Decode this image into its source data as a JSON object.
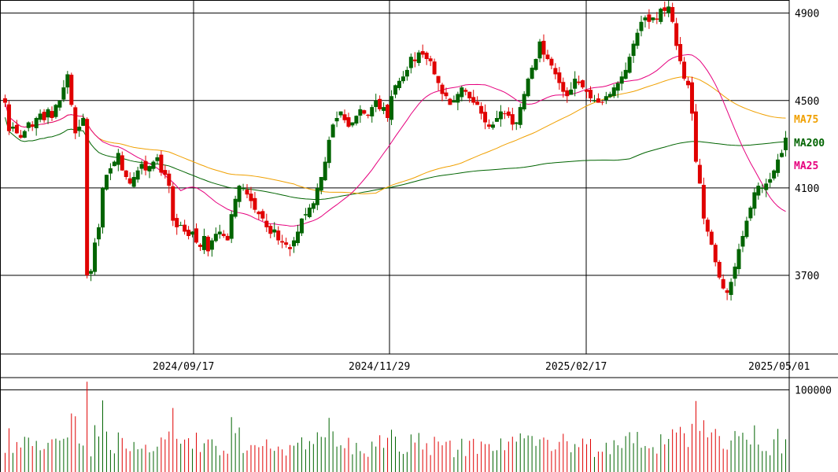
{
  "chart_data": {
    "type": "candlestick",
    "colors": {
      "up": "#006400",
      "down": "#e00000",
      "grid": "#000000",
      "ma25": "#e6007e",
      "ma75": "#f0a000",
      "ma200": "#006400"
    },
    "price_axis": {
      "ylim": [
        3340,
        4960
      ],
      "ticks": [
        "4900",
        "4500",
        "4100",
        "3700"
      ]
    },
    "date_labels": [
      "2024/09/17",
      "2024/11/29",
      "2025/02/17",
      "2025/05/01"
    ],
    "volume_axis": {
      "ylim": [
        0,
        115000
      ],
      "ticks": [
        "100000"
      ]
    },
    "legend": [
      {
        "name": "MA75",
        "color": "#f0a000"
      },
      {
        "name": "MA200",
        "color": "#006400"
      },
      {
        "name": "MA25",
        "color": "#e6007e"
      }
    ],
    "closes": [
      4490,
      4360,
      4380,
      4350,
      4330,
      4360,
      4400,
      4380,
      4420,
      4440,
      4410,
      4460,
      4420,
      4480,
      4500,
      4560,
      4620,
      4480,
      4350,
      4380,
      4420,
      3700,
      3720,
      3850,
      3920,
      4100,
      4160,
      4190,
      4220,
      4260,
      4180,
      4150,
      4120,
      4150,
      4180,
      4210,
      4180,
      4200,
      4220,
      4240,
      4170,
      4160,
      4110,
      3950,
      3920,
      3930,
      3900,
      3880,
      3900,
      3850,
      3830,
      3880,
      3810,
      3860,
      3890,
      3900,
      3880,
      3860,
      3980,
      4050,
      4110,
      4100,
      4070,
      4040,
      4000,
      3980,
      3960,
      3920,
      3890,
      3910,
      3860,
      3850,
      3840,
      3820,
      3860,
      3900,
      3960,
      3980,
      4010,
      4030,
      4100,
      4150,
      4220,
      4320,
      4390,
      4420,
      4450,
      4410,
      4380,
      4400,
      4430,
      4460,
      4440,
      4430,
      4470,
      4500,
      4460,
      4470,
      4420,
      4520,
      4570,
      4590,
      4610,
      4640,
      4700,
      4680,
      4720,
      4710,
      4690,
      4680,
      4620,
      4580,
      4530,
      4520,
      4480,
      4500,
      4530,
      4560,
      4540,
      4510,
      4490,
      4480,
      4440,
      4400,
      4380,
      4390,
      4420,
      4450,
      4440,
      4430,
      4390,
      4400,
      4470,
      4530,
      4600,
      4650,
      4690,
      4770,
      4710,
      4690,
      4660,
      4620,
      4580,
      4540,
      4520,
      4550,
      4600,
      4580,
      4560,
      4540,
      4510,
      4500,
      4490,
      4490,
      4520,
      4530,
      4560,
      4580,
      4610,
      4640,
      4700,
      4760,
      4810,
      4860,
      4880,
      4860,
      4880,
      4870,
      4920,
      4910,
      4930,
      4860,
      4750,
      4680,
      4600,
      4570,
      4440,
      4220,
      4120,
      3960,
      3900,
      3840,
      3760,
      3690,
      3640,
      3620,
      3670,
      3740,
      3820,
      3880,
      3950,
      4010,
      4080,
      4110,
      4100,
      4120,
      4140,
      4180,
      4230,
      4260,
      4330
    ]
  }
}
